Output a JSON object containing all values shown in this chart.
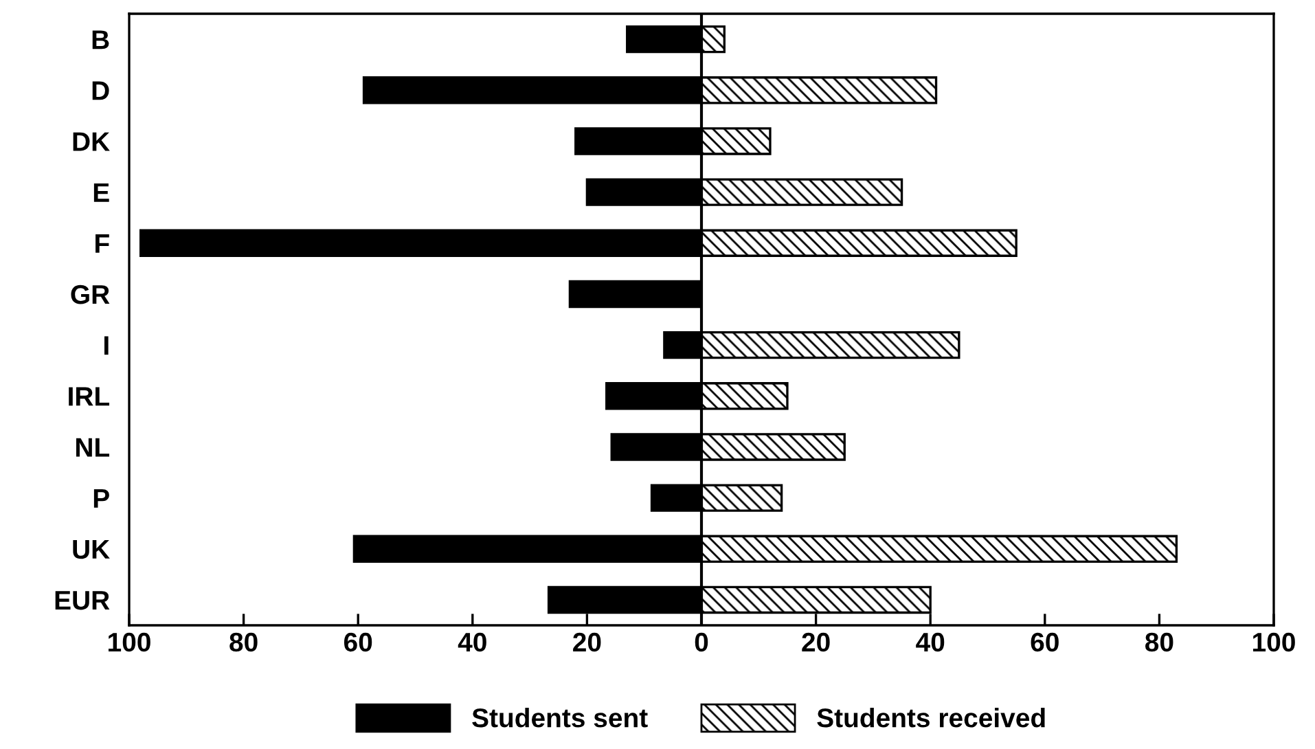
{
  "chart_data": {
    "type": "bar",
    "orientation": "horizontal",
    "stacked": true,
    "categories": [
      "B",
      "D",
      "DK",
      "E",
      "F",
      "GR",
      "I",
      "IRL",
      "NL",
      "P",
      "UK",
      "EUR"
    ],
    "series": [
      {
        "name": "Students sent",
        "color": "#000000",
        "values": [
          -13,
          -59,
          -22,
          -20,
          -98,
          -23,
          -6.5,
          -16.6,
          -15.7,
          -8.7,
          -60.7,
          -26.7
        ]
      },
      {
        "name": "Students received",
        "color": "#000000",
        "values": [
          4,
          41,
          12,
          35,
          55,
          0,
          45,
          15,
          25,
          14,
          83,
          40
        ]
      }
    ],
    "xlim": [
      -100,
      100
    ],
    "xticks": [
      {
        "value": -100,
        "label": "100"
      },
      {
        "value": -80,
        "label": "80"
      },
      {
        "value": -60,
        "label": "60"
      },
      {
        "value": -40,
        "label": "40"
      },
      {
        "value": -20,
        "label": "20"
      },
      0,
      20,
      40,
      60,
      80,
      100
    ],
    "ref_lines": [
      {
        "axis": "x",
        "value": 0,
        "color": "#000000"
      }
    ],
    "legend": "bottom",
    "grid": false
  }
}
